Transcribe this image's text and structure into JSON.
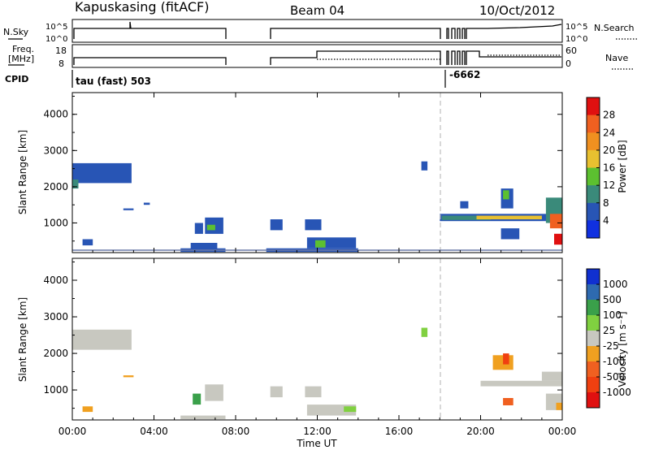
{
  "header": {
    "station": "Kapuskasing (fitACF)",
    "beam": "Beam 04",
    "date": "10/Oct/2012"
  },
  "top_panels": {
    "nsky": {
      "label": "N.Sky",
      "ticks": [
        "10^5",
        "10^0"
      ],
      "right_ticks": [
        "10^5",
        "10^0"
      ],
      "right_label": "N.Search"
    },
    "freq": {
      "label_lines": [
        "Freq.",
        "[MHz]"
      ],
      "ticks": [
        "18",
        "8"
      ],
      "right_ticks": [
        "60",
        "0"
      ],
      "right_label": "Nave"
    },
    "cpid": {
      "label": "CPID",
      "values": [
        "tau (fast) 503",
        "-6662"
      ]
    }
  },
  "chart_data": [
    {
      "type": "heatmap",
      "name": "power",
      "ylabel": "Slant Range [km]",
      "ylim": [
        180,
        4600
      ],
      "yticks": [
        1000,
        2000,
        3000,
        4000
      ],
      "xlim": [
        0,
        24
      ],
      "xticks": [
        0,
        4,
        8,
        12,
        16,
        20,
        24
      ],
      "colorbar": {
        "label": "Power [dB]",
        "ticks": [
          "4",
          "8",
          "12",
          "16",
          "20",
          "24",
          "28"
        ],
        "colors": [
          "#1030e0",
          "#2855b5",
          "#3a8a7a",
          "#5cc030",
          "#e8c030",
          "#f09020",
          "#f06020",
          "#e01010"
        ]
      },
      "patches": [
        {
          "t0": 0.0,
          "t1": 2.9,
          "r0": 2100,
          "r1": 2650,
          "ci": 1
        },
        {
          "t0": 0.0,
          "t1": 0.3,
          "r0": 1950,
          "r1": 2200,
          "ci": 2
        },
        {
          "t0": 2.5,
          "t1": 3.0,
          "r0": 1350,
          "r1": 1400,
          "ci": 1
        },
        {
          "t0": 3.5,
          "t1": 3.8,
          "r0": 1500,
          "r1": 1560,
          "ci": 1
        },
        {
          "t0": 0.5,
          "t1": 1.0,
          "r0": 380,
          "r1": 550,
          "ci": 1
        },
        {
          "t0": 5.3,
          "t1": 7.5,
          "r0": 200,
          "r1": 300,
          "ci": 1
        },
        {
          "t0": 5.8,
          "t1": 7.1,
          "r0": 280,
          "r1": 450,
          "ci": 1
        },
        {
          "t0": 6.5,
          "t1": 7.4,
          "r0": 700,
          "r1": 1150,
          "ci": 1
        },
        {
          "t0": 6.6,
          "t1": 7.0,
          "r0": 800,
          "r1": 950,
          "ci": 3
        },
        {
          "t0": 6.0,
          "t1": 6.4,
          "r0": 700,
          "r1": 1000,
          "ci": 1
        },
        {
          "t0": 9.7,
          "t1": 10.3,
          "r0": 800,
          "r1": 1100,
          "ci": 1
        },
        {
          "t0": 11.4,
          "t1": 12.2,
          "r0": 800,
          "r1": 1100,
          "ci": 1
        },
        {
          "t0": 9.5,
          "t1": 14.0,
          "r0": 200,
          "r1": 300,
          "ci": 1
        },
        {
          "t0": 11.5,
          "t1": 13.9,
          "r0": 300,
          "r1": 600,
          "ci": 1
        },
        {
          "t0": 11.9,
          "t1": 12.4,
          "r0": 320,
          "r1": 520,
          "ci": 3
        },
        {
          "t0": 17.1,
          "t1": 17.4,
          "r0": 2450,
          "r1": 2700,
          "ci": 1
        },
        {
          "t0": 18.0,
          "t1": 23.8,
          "r0": 1050,
          "r1": 1250,
          "ci": 1
        },
        {
          "t0": 18.1,
          "t1": 20.5,
          "r0": 1080,
          "r1": 1200,
          "ci": 2
        },
        {
          "t0": 19.8,
          "t1": 23.0,
          "r0": 1100,
          "r1": 1200,
          "ci": 4
        },
        {
          "t0": 21.0,
          "t1": 21.6,
          "r0": 1400,
          "r1": 1950,
          "ci": 1
        },
        {
          "t0": 21.1,
          "t1": 21.4,
          "r0": 1650,
          "r1": 1900,
          "ci": 3
        },
        {
          "t0": 21.0,
          "t1": 21.9,
          "r0": 550,
          "r1": 850,
          "ci": 1
        },
        {
          "t0": 23.2,
          "t1": 24.0,
          "r0": 1000,
          "r1": 1700,
          "ci": 2
        },
        {
          "t0": 23.4,
          "t1": 24.0,
          "r0": 850,
          "r1": 1250,
          "ci": 6
        },
        {
          "t0": 23.6,
          "t1": 24.0,
          "r0": 400,
          "r1": 700,
          "ci": 7
        },
        {
          "t0": 19.0,
          "t1": 19.4,
          "r0": 1400,
          "r1": 1600,
          "ci": 1
        }
      ]
    },
    {
      "type": "heatmap",
      "name": "velocity",
      "ylabel": "Slant Range [km]",
      "xlabel": "Time UT",
      "ylim": [
        180,
        4600
      ],
      "yticks": [
        1000,
        2000,
        3000,
        4000
      ],
      "xlim": [
        0,
        24
      ],
      "xticks": [
        0,
        4,
        8,
        12,
        16,
        20,
        24
      ],
      "xticklabels": [
        "00:00",
        "04:00",
        "08:00",
        "12:00",
        "16:00",
        "20:00",
        "00:00"
      ],
      "colorbar": {
        "label": "Velocity [m s⁻¹]",
        "ticks": [
          "1000",
          "500",
          "100",
          "25",
          "-25",
          "-100",
          "-500",
          "-1000"
        ],
        "colors": [
          "#1030d0",
          "#2e6ab0",
          "#3aa04a",
          "#80d040",
          "#c8c8c0",
          "#f0a020",
          "#f06020",
          "#f04010",
          "#e01010"
        ]
      },
      "patches": [
        {
          "t0": 0.0,
          "t1": 2.9,
          "r0": 2100,
          "r1": 2650,
          "ci": 4
        },
        {
          "t0": 2.5,
          "t1": 3.0,
          "r0": 1350,
          "r1": 1400,
          "ci": 5
        },
        {
          "t0": 0.5,
          "t1": 1.0,
          "r0": 400,
          "r1": 550,
          "ci": 5
        },
        {
          "t0": 5.3,
          "t1": 7.5,
          "r0": 200,
          "r1": 300,
          "ci": 4
        },
        {
          "t0": 6.5,
          "t1": 7.4,
          "r0": 700,
          "r1": 1150,
          "ci": 4
        },
        {
          "t0": 5.9,
          "t1": 6.3,
          "r0": 600,
          "r1": 900,
          "ci": 2
        },
        {
          "t0": 9.7,
          "t1": 10.3,
          "r0": 800,
          "r1": 1100,
          "ci": 4
        },
        {
          "t0": 11.4,
          "t1": 12.2,
          "r0": 800,
          "r1": 1100,
          "ci": 4
        },
        {
          "t0": 11.5,
          "t1": 13.9,
          "r0": 300,
          "r1": 600,
          "ci": 4
        },
        {
          "t0": 13.3,
          "t1": 13.9,
          "r0": 400,
          "r1": 550,
          "ci": 3
        },
        {
          "t0": 17.1,
          "t1": 17.4,
          "r0": 2450,
          "r1": 2700,
          "ci": 3
        },
        {
          "t0": 20.0,
          "t1": 24.0,
          "r0": 1100,
          "r1": 1250,
          "ci": 4
        },
        {
          "t0": 23.0,
          "t1": 24.0,
          "r0": 1250,
          "r1": 1500,
          "ci": 4
        },
        {
          "t0": 20.6,
          "t1": 21.6,
          "r0": 1550,
          "r1": 1950,
          "ci": 5
        },
        {
          "t0": 21.1,
          "t1": 21.4,
          "r0": 1700,
          "r1": 2000,
          "ci": 7
        },
        {
          "t0": 21.1,
          "t1": 21.6,
          "r0": 580,
          "r1": 780,
          "ci": 6
        },
        {
          "t0": 23.2,
          "t1": 24.0,
          "r0": 450,
          "r1": 900,
          "ci": 4
        },
        {
          "t0": 23.7,
          "t1": 24.0,
          "r0": 450,
          "r1": 650,
          "ci": 5
        }
      ]
    }
  ]
}
